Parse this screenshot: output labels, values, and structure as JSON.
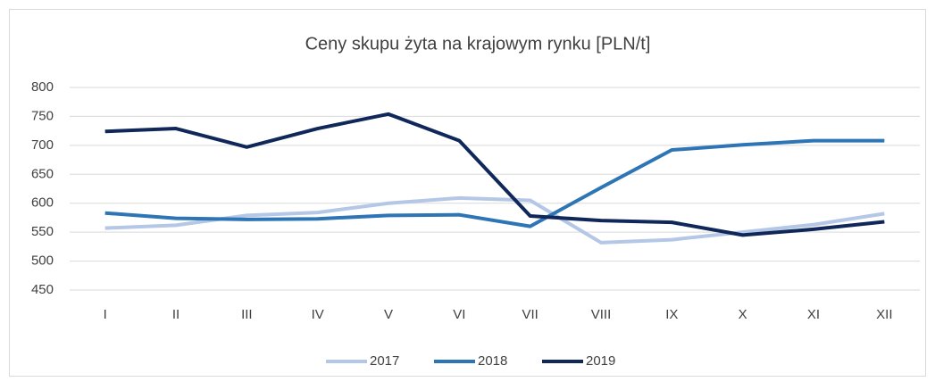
{
  "chart_data": {
    "type": "line",
    "title": "Ceny skupu żyta na krajowym rynku [PLN/t]",
    "categories": [
      "I",
      "II",
      "III",
      "IV",
      "V",
      "VI",
      "VII",
      "VIII",
      "IX",
      "X",
      "XI",
      "XII"
    ],
    "series": [
      {
        "name": "2017",
        "color": "#b4c7e7",
        "values": [
          557,
          562,
          579,
          584,
          600,
          609,
          605,
          532,
          537,
          550,
          563,
          582
        ]
      },
      {
        "name": "2018",
        "color": "#2e75b6",
        "values": [
          583,
          574,
          572,
          573,
          579,
          580,
          560,
          627,
          692,
          701,
          708,
          708
        ]
      },
      {
        "name": "2019",
        "color": "#10275a",
        "values": [
          724,
          729,
          697,
          729,
          754,
          708,
          578,
          570,
          567,
          545,
          555,
          568
        ]
      }
    ],
    "ylim": [
      450,
      800
    ],
    "yticks": [
      450,
      500,
      550,
      600,
      650,
      700,
      750,
      800
    ],
    "grid": true,
    "legend": "bottom"
  }
}
